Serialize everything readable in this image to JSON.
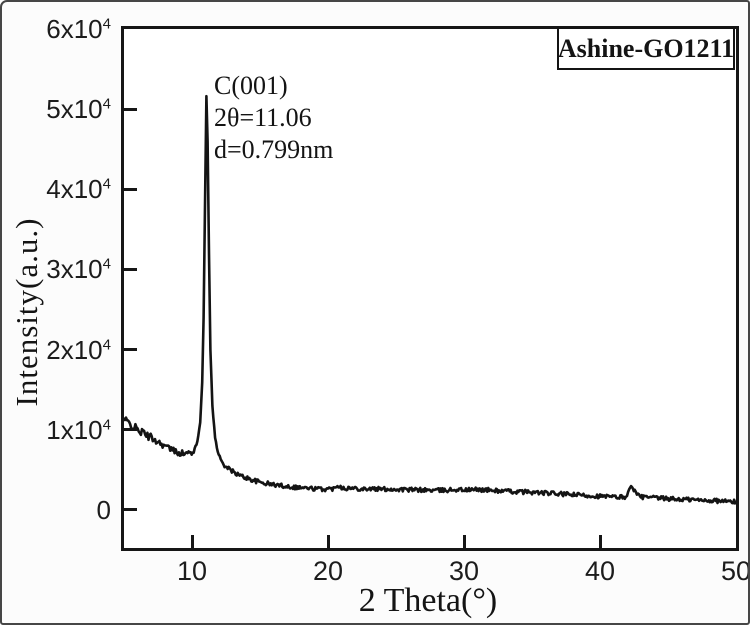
{
  "figure": {
    "background": "#fcfcfc",
    "plot_background": "#ffffff",
    "line_color": "#141414",
    "border_color": "#161616",
    "text_color": "#1c1c1c"
  },
  "legend": {
    "label": "Ashine-GO1211"
  },
  "annotation": {
    "line1": "C(001)",
    "line2": "2θ=11.06",
    "line3": "d=0.799nm"
  },
  "axes": {
    "x_title": "2 Theta(°)",
    "y_title": "Intensity(a.u.)",
    "x_tick_labels": [
      "10",
      "20",
      "30",
      "40",
      "50"
    ],
    "y_tick_labels": [
      {
        "base": "0",
        "sup": ""
      },
      {
        "base": "1x10",
        "sup": "4"
      },
      {
        "base": "2x10",
        "sup": "4"
      },
      {
        "base": "3x10",
        "sup": "4"
      },
      {
        "base": "4x10",
        "sup": "4"
      },
      {
        "base": "5x10",
        "sup": "4"
      },
      {
        "base": "6x10",
        "sup": "4"
      }
    ]
  },
  "chart_data": {
    "type": "line",
    "title": "",
    "xlabel": "2 Theta(°)",
    "ylabel": "Intensity(a.u.)",
    "xlim": [
      5,
      50
    ],
    "ylim": [
      -4750,
      60000
    ],
    "x_ticks": [
      10,
      20,
      30,
      40,
      50
    ],
    "y_ticks": [
      0,
      10000,
      20000,
      30000,
      40000,
      50000,
      60000
    ],
    "grid": false,
    "legend_position": "top-right",
    "legend_entries": [
      "Ashine-GO1211"
    ],
    "annotations": [
      "C(001)",
      "2θ=11.06",
      "d=0.799nm"
    ],
    "peak": {
      "label": "C(001)",
      "two_theta": 11.06,
      "d_spacing_nm": 0.799,
      "intensity": 51500
    },
    "noise_amplitude": {
      "start_region": 500,
      "pre_peak": 400,
      "peak_region": 120,
      "baseline": 270
    },
    "series": [
      {
        "name": "Ashine-GO1211",
        "x": [
          5.0,
          5.3,
          5.6,
          6.0,
          6.4,
          6.8,
          7.2,
          7.6,
          8.0,
          8.4,
          8.8,
          9.2,
          9.6,
          9.9,
          10.2,
          10.4,
          10.6,
          10.75,
          10.85,
          10.95,
          11.06,
          11.15,
          11.25,
          11.35,
          11.5,
          11.7,
          11.9,
          12.1,
          12.4,
          12.7,
          13.0,
          13.5,
          14.0,
          14.5,
          15.0,
          15.5,
          16.0,
          16.5,
          17.0,
          17.5,
          18.0,
          18.5,
          19.0,
          19.5,
          20.0,
          20.4,
          20.7,
          21.0,
          21.5,
          22.0,
          22.5,
          23.0,
          23.5,
          24.0,
          24.5,
          25.0,
          25.5,
          26.0,
          26.5,
          27.0,
          27.5,
          28.0,
          28.5,
          29.0,
          29.5,
          30.0,
          30.5,
          31.0,
          31.5,
          32.0,
          32.5,
          33.0,
          33.5,
          34.0,
          34.5,
          35.0,
          35.5,
          36.0,
          36.5,
          37.0,
          37.5,
          38.0,
          38.5,
          39.0,
          39.5,
          40.0,
          40.5,
          41.0,
          41.5,
          41.9,
          42.15,
          42.35,
          42.55,
          42.8,
          43.0,
          43.5,
          44.0,
          44.5,
          45.0,
          45.5,
          46.0,
          46.5,
          47.0,
          47.5,
          48.0,
          48.5,
          49.0,
          49.5,
          50.0
        ],
        "y": [
          11300,
          10900,
          10500,
          10000,
          9600,
          9200,
          8800,
          8400,
          8000,
          7600,
          7300,
          7100,
          7000,
          7100,
          7600,
          8500,
          11000,
          16000,
          24000,
          37000,
          51500,
          46000,
          32000,
          20000,
          13000,
          9000,
          7200,
          6300,
          5600,
          5100,
          4800,
          4300,
          4000,
          3700,
          3450,
          3300,
          3150,
          3050,
          2950,
          2850,
          2800,
          2700,
          2650,
          2600,
          2600,
          2650,
          3150,
          2800,
          2700,
          2700,
          2650,
          2650,
          2600,
          2600,
          2600,
          2550,
          2550,
          2500,
          2500,
          2500,
          2450,
          2450,
          2450,
          2500,
          2550,
          2500,
          2500,
          2550,
          2500,
          2450,
          2400,
          2350,
          2300,
          2250,
          2250,
          2200,
          2150,
          2100,
          2050,
          2000,
          1950,
          1900,
          1850,
          1800,
          1750,
          1700,
          1650,
          1600,
          1600,
          1650,
          2400,
          3100,
          2300,
          1800,
          1650,
          1550,
          1500,
          1450,
          1400,
          1350,
          1300,
          1300,
          1250,
          1200,
          1200,
          1150,
          1100,
          1050,
          1000
        ]
      }
    ]
  }
}
